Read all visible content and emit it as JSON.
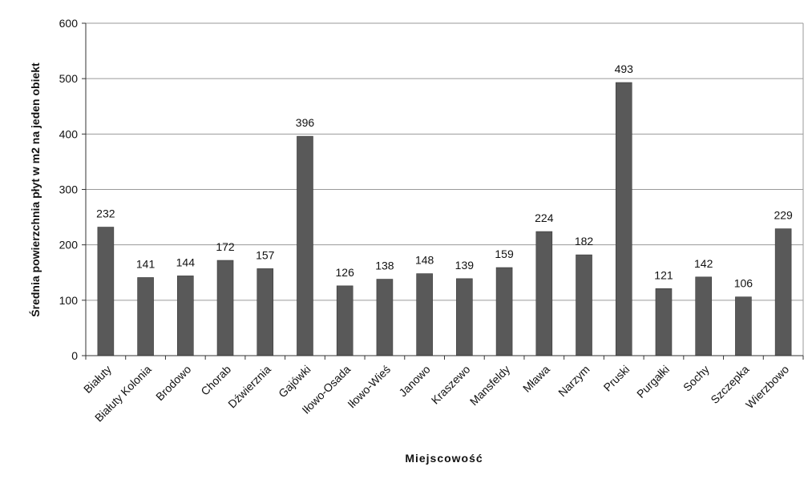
{
  "chart_data": {
    "type": "bar",
    "title": "",
    "xlabel": "Miejscowość",
    "ylabel": "Średnia powierzchnia płyt w m2 na jeden obiekt",
    "ylim": [
      0,
      600
    ],
    "yticks": [
      0,
      100,
      200,
      300,
      400,
      500,
      600
    ],
    "grid": true,
    "categories": [
      "Białuty",
      "Białuty Kolonia",
      "Brodowo",
      "Chorab",
      "Dźwierznia",
      "Gajówki",
      "Iłowo-Osada",
      "Iłowo-Wieś",
      "Janowo",
      "Kraszewo",
      "Mansfeldy",
      "Mława",
      "Narzym",
      "Pruski",
      "Purgałki",
      "Sochy",
      "Szczepka",
      "Wierzbowo"
    ],
    "values": [
      232,
      141,
      144,
      172,
      157,
      396,
      126,
      138,
      148,
      139,
      159,
      224,
      182,
      493,
      121,
      142,
      106,
      229
    ],
    "colors": {
      "bar": "#595959",
      "grid": "#9a9a9a",
      "axis": "#333333"
    }
  }
}
